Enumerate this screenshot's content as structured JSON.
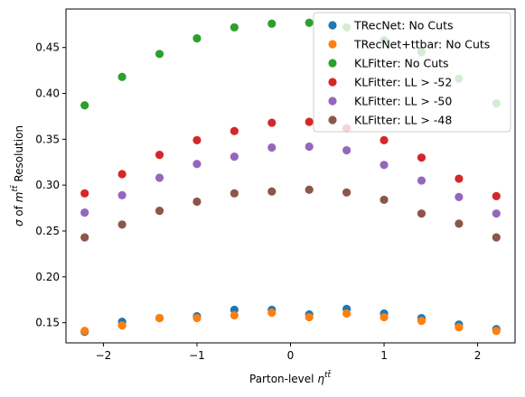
{
  "chart_data": {
    "type": "scatter",
    "xlabel": "Parton-level η^{tt̄}",
    "ylabel": "σ of m^{tt̄} Resolution",
    "xlim": [
      -2.4,
      2.4
    ],
    "ylim": [
      0.128,
      0.492
    ],
    "xticks": [
      -2,
      -1,
      0,
      1,
      2
    ],
    "xtick_labels": [
      "−2",
      "−1",
      "0",
      "1",
      "2"
    ],
    "yticks": [
      0.15,
      0.2,
      0.25,
      0.3,
      0.35,
      0.4,
      0.45
    ],
    "ytick_labels": [
      "0.15",
      "0.20",
      "0.25",
      "0.30",
      "0.35",
      "0.40",
      "0.45"
    ],
    "legend_position": "top-right",
    "x": [
      -2.2,
      -1.8,
      -1.4,
      -1.0,
      -0.6,
      -0.2,
      0.2,
      0.6,
      1.0,
      1.4,
      1.8,
      2.2
    ],
    "series": [
      {
        "name": "TRecNet: No Cuts",
        "color": "#1f77b4",
        "values": [
          0.14,
          0.151,
          0.155,
          0.157,
          0.164,
          0.164,
          0.159,
          0.165,
          0.16,
          0.155,
          0.148,
          0.143
        ]
      },
      {
        "name": "TRecNet+ttbar: No Cuts",
        "color": "#ff7f0e",
        "values": [
          0.141,
          0.147,
          0.155,
          0.155,
          0.158,
          0.161,
          0.156,
          0.16,
          0.156,
          0.152,
          0.145,
          0.141
        ]
      },
      {
        "name": "KLFitter: No Cuts",
        "color": "#2ca02c",
        "values": [
          0.387,
          0.418,
          0.443,
          0.46,
          0.472,
          0.476,
          0.477,
          0.472,
          0.458,
          0.445,
          0.416,
          0.389
        ]
      },
      {
        "name": "KLFitter: LL > -52",
        "color": "#d62728",
        "values": [
          0.291,
          0.312,
          0.333,
          0.349,
          0.359,
          0.368,
          0.369,
          0.362,
          0.349,
          0.33,
          0.307,
          0.288
        ]
      },
      {
        "name": "KLFitter: LL > -50",
        "color": "#9467bd",
        "values": [
          0.27,
          0.289,
          0.308,
          0.323,
          0.331,
          0.341,
          0.342,
          0.338,
          0.322,
          0.305,
          0.287,
          0.269
        ]
      },
      {
        "name": "KLFitter: LL > -48",
        "color": "#8c564b",
        "values": [
          0.243,
          0.257,
          0.272,
          0.282,
          0.291,
          0.293,
          0.295,
          0.292,
          0.284,
          0.269,
          0.258,
          0.243
        ]
      }
    ]
  }
}
